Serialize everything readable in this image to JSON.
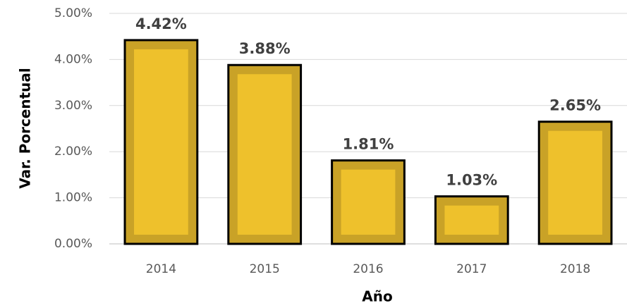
{
  "chart_data": {
    "type": "bar",
    "x_label": "Año",
    "y_label": "Var. Porcentual",
    "categories": [
      "2014",
      "2015",
      "2016",
      "2017",
      "2018"
    ],
    "values": [
      4.42,
      3.88,
      1.81,
      1.03,
      2.65
    ],
    "value_labels": [
      "4.42%",
      "3.88%",
      "1.81%",
      "1.03%",
      "2.65%"
    ],
    "color": "#c9a227",
    "ylim": [
      0,
      5
    ],
    "yticks": [
      {
        "value": 0,
        "label": "0.00%"
      },
      {
        "value": 1,
        "label": "1.00%"
      },
      {
        "value": 2,
        "label": "2.00%"
      },
      {
        "value": 3,
        "label": "3.00%"
      },
      {
        "value": 4,
        "label": "4.00%"
      },
      {
        "value": 5,
        "label": "5.00%"
      }
    ],
    "grid": true
  }
}
